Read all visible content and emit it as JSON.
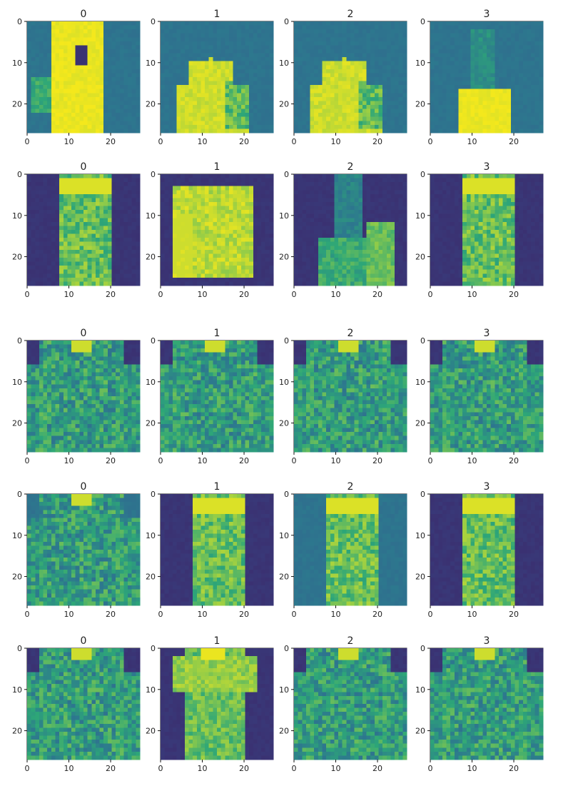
{
  "colors": {
    "colormap": "viridis",
    "low": "#3b2a6b",
    "high": "#f4e81c",
    "axis": "#333333"
  },
  "chart_data": [
    {
      "type": "heatmap",
      "title": "0",
      "xticks": [
        "0",
        "10",
        "20"
      ],
      "yticks": [
        "0",
        "10",
        "20"
      ],
      "xlim": [
        0,
        27
      ],
      "ylim": [
        27,
        0
      ],
      "content": "ankle boot / shoe",
      "theme": "teal-yellow"
    },
    {
      "type": "heatmap",
      "title": "1",
      "xticks": [
        "0",
        "10",
        "20"
      ],
      "yticks": [
        "0",
        "10",
        "20"
      ],
      "xlim": [
        0,
        27
      ],
      "ylim": [
        27,
        0
      ],
      "content": "shoe",
      "theme": "teal-yellow"
    },
    {
      "type": "heatmap",
      "title": "2",
      "xticks": [
        "0",
        "10",
        "20"
      ],
      "yticks": [
        "0",
        "10",
        "20"
      ],
      "xlim": [
        0,
        27
      ],
      "ylim": [
        27,
        0
      ],
      "content": "shoe",
      "theme": "teal-yellow"
    },
    {
      "type": "heatmap",
      "title": "3",
      "xticks": [
        "0",
        "10",
        "20"
      ],
      "yticks": [
        "0",
        "10",
        "20"
      ],
      "xlim": [
        0,
        27
      ],
      "ylim": [
        27,
        0
      ],
      "content": "boot",
      "theme": "teal-yellow"
    },
    {
      "type": "heatmap",
      "title": "0",
      "xticks": [
        "0",
        "10",
        "20"
      ],
      "yticks": [
        "0",
        "10",
        "20"
      ],
      "xlim": [
        0,
        27
      ],
      "ylim": [
        27,
        0
      ],
      "content": "dress",
      "theme": "purple-green"
    },
    {
      "type": "heatmap",
      "title": "1",
      "xticks": [
        "0",
        "10",
        "20"
      ],
      "yticks": [
        "0",
        "10",
        "20"
      ],
      "xlim": [
        0,
        27
      ],
      "ylim": [
        27,
        0
      ],
      "content": "bag",
      "theme": "purple-green"
    },
    {
      "type": "heatmap",
      "title": "2",
      "xticks": [
        "0",
        "10",
        "20"
      ],
      "yticks": [
        "0",
        "10",
        "20"
      ],
      "xlim": [
        0,
        27
      ],
      "ylim": [
        27,
        0
      ],
      "content": "figure",
      "theme": "purple-green"
    },
    {
      "type": "heatmap",
      "title": "3",
      "xticks": [
        "0",
        "10",
        "20"
      ],
      "yticks": [
        "0",
        "10",
        "20"
      ],
      "xlim": [
        0,
        27
      ],
      "ylim": [
        27,
        0
      ],
      "content": "dress",
      "theme": "purple-green"
    },
    {
      "type": "heatmap",
      "title": "0",
      "xticks": [
        "0",
        "10",
        "20"
      ],
      "yticks": [
        "0",
        "10",
        "20"
      ],
      "xlim": [
        0,
        27
      ],
      "ylim": [
        27,
        0
      ],
      "content": "shirt",
      "theme": "purple-green"
    },
    {
      "type": "heatmap",
      "title": "1",
      "xticks": [
        "0",
        "10",
        "20"
      ],
      "yticks": [
        "0",
        "10",
        "20"
      ],
      "xlim": [
        0,
        27
      ],
      "ylim": [
        27,
        0
      ],
      "content": "shirt",
      "theme": "purple-green"
    },
    {
      "type": "heatmap",
      "title": "2",
      "xticks": [
        "0",
        "10",
        "20"
      ],
      "yticks": [
        "0",
        "10",
        "20"
      ],
      "xlim": [
        0,
        27
      ],
      "ylim": [
        27,
        0
      ],
      "content": "shirt",
      "theme": "purple-green"
    },
    {
      "type": "heatmap",
      "title": "3",
      "xticks": [
        "0",
        "10",
        "20"
      ],
      "yticks": [
        "0",
        "10",
        "20"
      ],
      "xlim": [
        0,
        27
      ],
      "ylim": [
        27,
        0
      ],
      "content": "shirt",
      "theme": "purple-green"
    },
    {
      "type": "heatmap",
      "title": "0",
      "xticks": [
        "0",
        "10",
        "20"
      ],
      "yticks": [
        "0",
        "10",
        "20"
      ],
      "xlim": [
        0,
        27
      ],
      "ylim": [
        27,
        0
      ],
      "content": "shirt",
      "theme": "teal-yellow"
    },
    {
      "type": "heatmap",
      "title": "1",
      "xticks": [
        "0",
        "10",
        "20"
      ],
      "yticks": [
        "0",
        "10",
        "20"
      ],
      "xlim": [
        0,
        27
      ],
      "ylim": [
        27,
        0
      ],
      "content": "dress",
      "theme": "purple-green"
    },
    {
      "type": "heatmap",
      "title": "2",
      "xticks": [
        "0",
        "10",
        "20"
      ],
      "yticks": [
        "0",
        "10",
        "20"
      ],
      "xlim": [
        0,
        27
      ],
      "ylim": [
        27,
        0
      ],
      "content": "dress",
      "theme": "teal-yellow"
    },
    {
      "type": "heatmap",
      "title": "3",
      "xticks": [
        "0",
        "10",
        "20"
      ],
      "yticks": [
        "0",
        "10",
        "20"
      ],
      "xlim": [
        0,
        27
      ],
      "ylim": [
        27,
        0
      ],
      "content": "dress",
      "theme": "purple-green"
    },
    {
      "type": "heatmap",
      "title": "0",
      "xticks": [
        "0",
        "10",
        "20"
      ],
      "yticks": [
        "0",
        "10",
        "20"
      ],
      "xlim": [
        0,
        27
      ],
      "ylim": [
        27,
        0
      ],
      "content": "shirt",
      "theme": "purple-green"
    },
    {
      "type": "heatmap",
      "title": "1",
      "xticks": [
        "0",
        "10",
        "20"
      ],
      "yticks": [
        "0",
        "10",
        "20"
      ],
      "xlim": [
        0,
        27
      ],
      "ylim": [
        27,
        0
      ],
      "content": "tshirt",
      "theme": "purple-green"
    },
    {
      "type": "heatmap",
      "title": "2",
      "xticks": [
        "0",
        "10",
        "20"
      ],
      "yticks": [
        "0",
        "10",
        "20"
      ],
      "xlim": [
        0,
        27
      ],
      "ylim": [
        27,
        0
      ],
      "content": "shirt",
      "theme": "purple-green"
    },
    {
      "type": "heatmap",
      "title": "3",
      "xticks": [
        "0",
        "10",
        "20"
      ],
      "yticks": [
        "0",
        "10",
        "20"
      ],
      "xlim": [
        0,
        27
      ],
      "ylim": [
        27,
        0
      ],
      "content": "shirt",
      "theme": "purple-green"
    }
  ]
}
